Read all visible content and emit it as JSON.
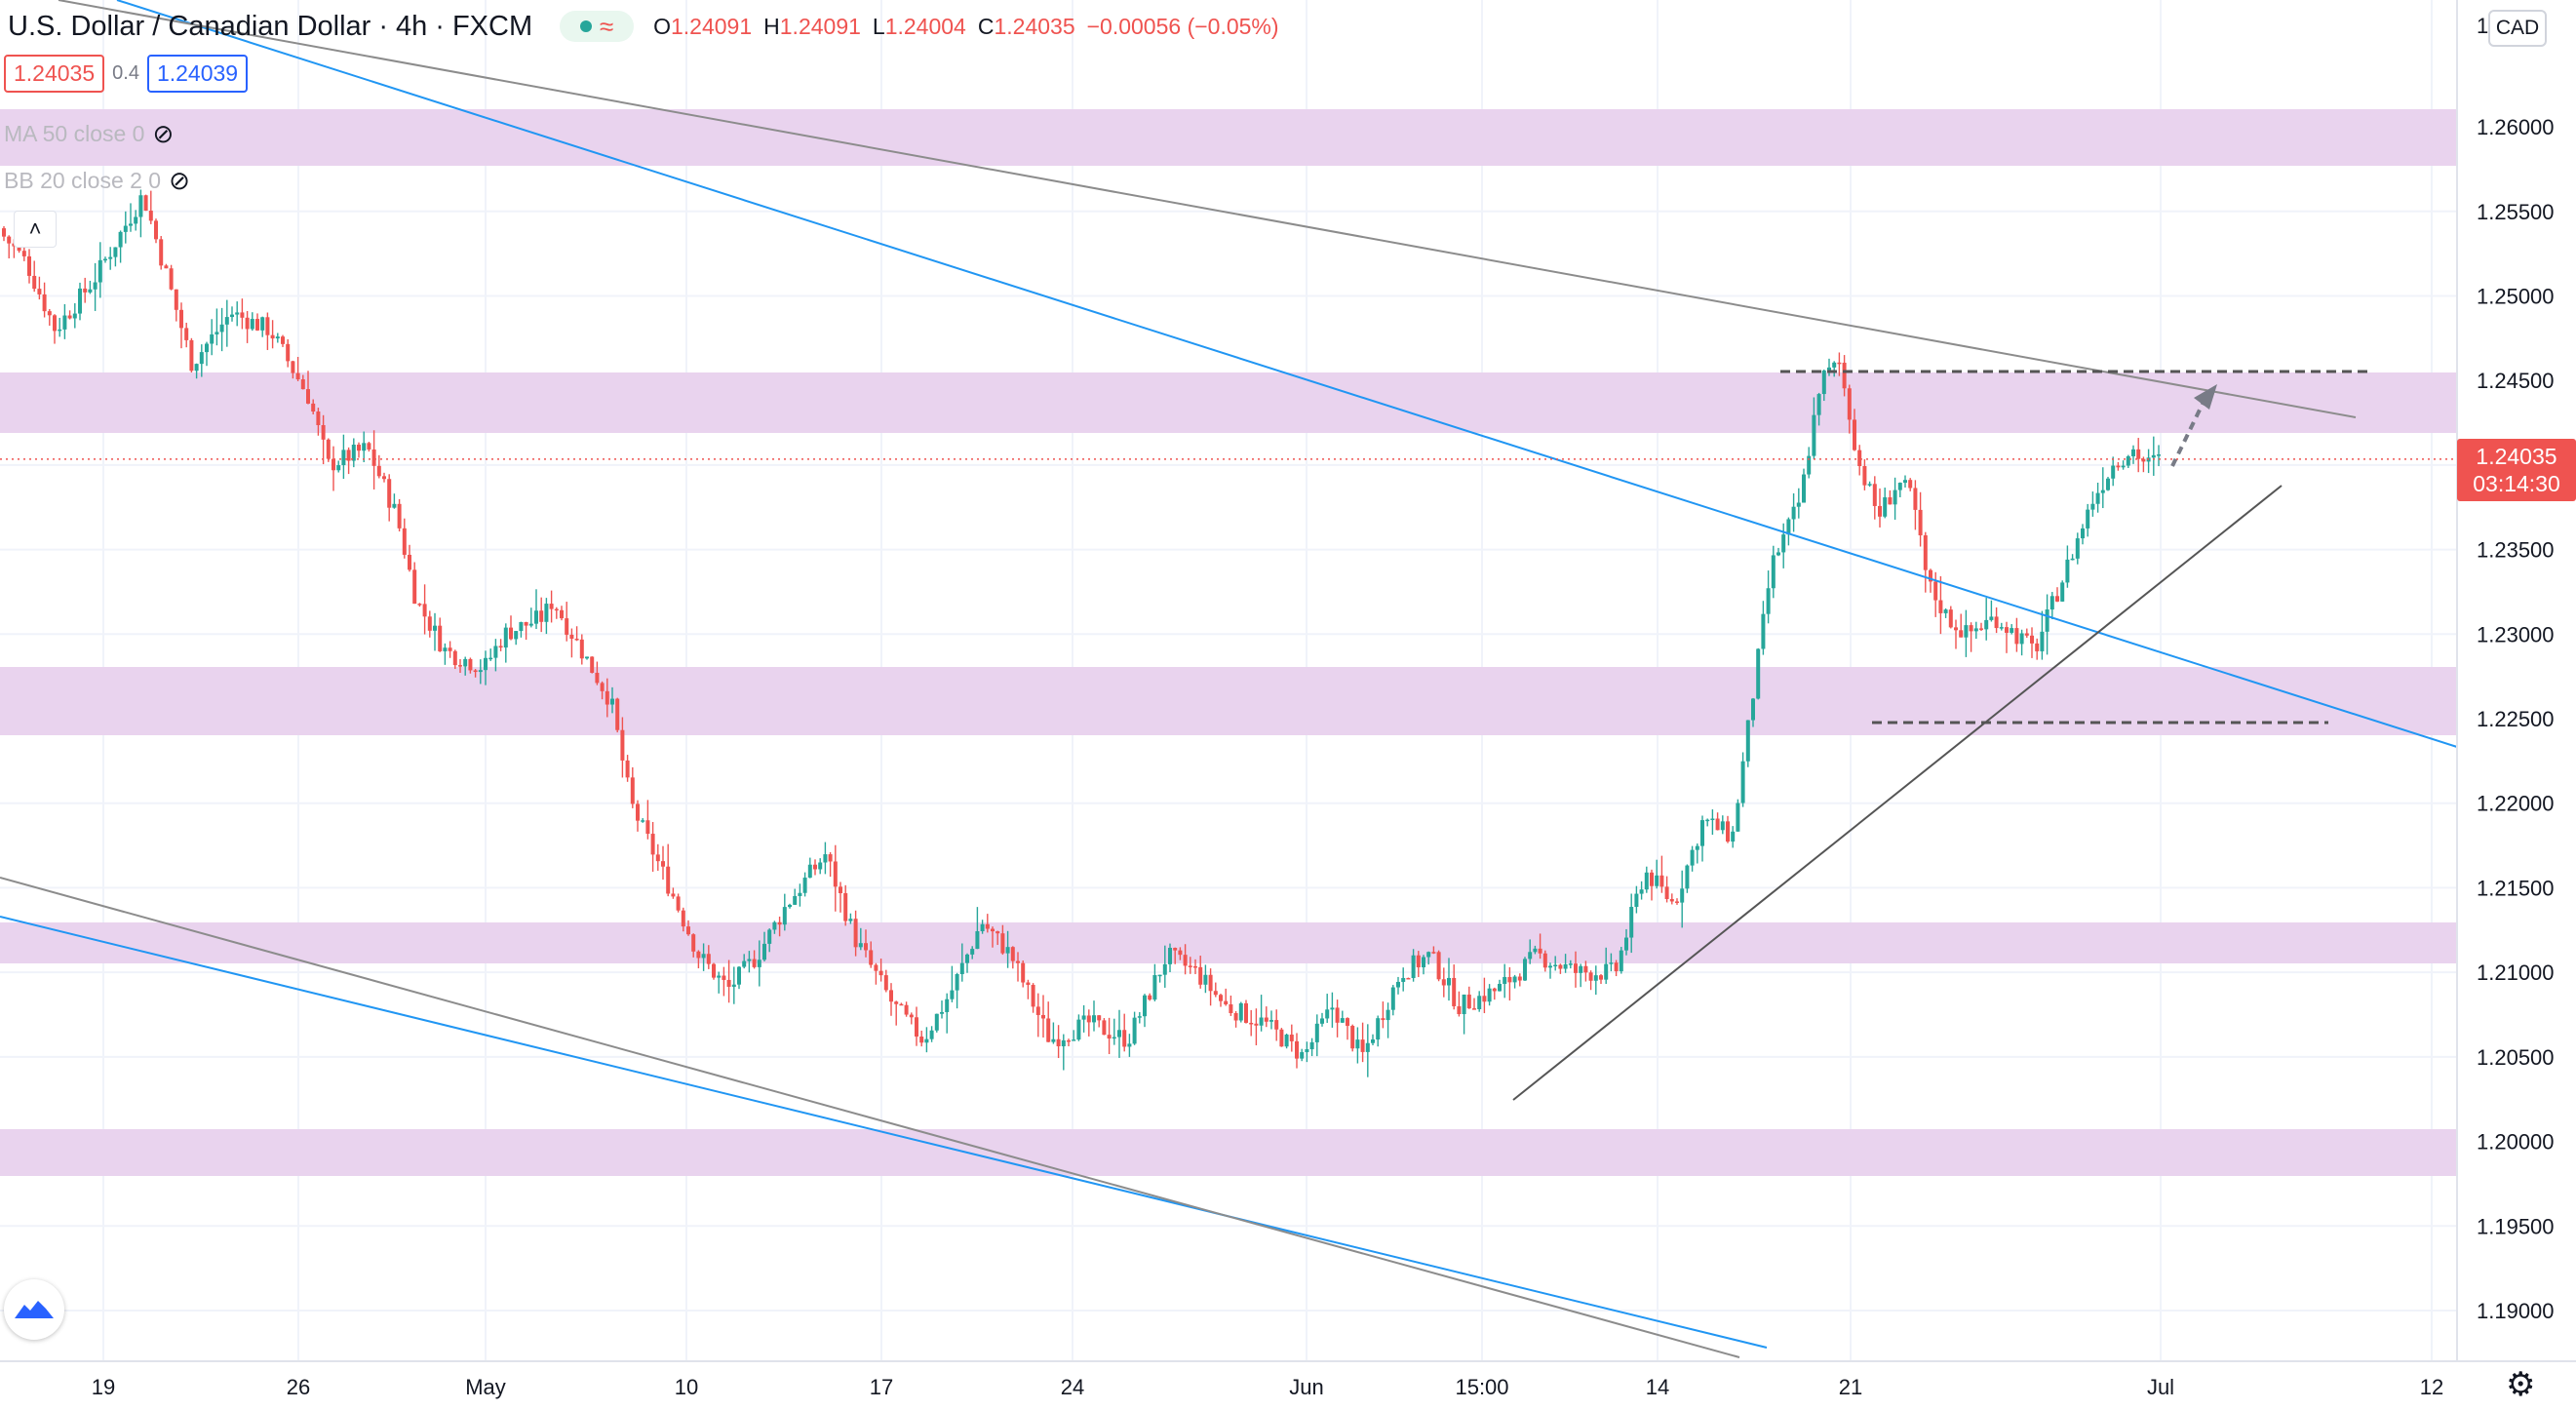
{
  "legend": {
    "symbol": "U.S. Dollar / Canadian Dollar",
    "separator": "·",
    "interval": "4h",
    "exchange": "FXCM",
    "ohlc": [
      {
        "k": "O",
        "v": "1.24091"
      },
      {
        "k": "H",
        "v": "1.24091"
      },
      {
        "k": "L",
        "v": "1.24004"
      },
      {
        "k": "C",
        "v": "1.24035"
      },
      {
        "k": "",
        "v": "−0.00056 (−0.05%)"
      }
    ]
  },
  "trade": {
    "sell_price": "1.24035",
    "spread": "0.4",
    "buy_price": "1.24039"
  },
  "indicators": [
    {
      "label": "MA 50 close 0"
    },
    {
      "label": "BB 20 close 2 0"
    }
  ],
  "currency": "CAD",
  "last_price": {
    "price": "1.24035",
    "countdown": "03:14:30"
  },
  "colors": {
    "up": "#26a69a",
    "down": "#ef5350",
    "zone": "#e9d3ee",
    "blue_line": "#2196f3",
    "grey_line": "#8c8c8c",
    "arrow": "#787b86"
  },
  "chart_data": {
    "type": "candlestick",
    "title": "U.S. Dollar / Canadian Dollar",
    "interval": "4h",
    "x_ticks": [
      "19",
      "26",
      "May",
      "10",
      "17",
      "24",
      "Jun",
      "15:00",
      "14",
      "21",
      "Jul",
      "12"
    ],
    "y_ticks": [
      "1.26000",
      "1.25500",
      "1.25000",
      "1.24500",
      "1.24000",
      "1.23500",
      "1.23000",
      "1.22500",
      "1.22000",
      "1.21500",
      "1.21000",
      "1.20500",
      "1.20000",
      "1.19500",
      "1.19000"
    ],
    "y_range": [
      1.187,
      1.2675
    ],
    "price_path": [
      [
        0,
        1.254
      ],
      [
        30,
        1.252
      ],
      [
        60,
        1.248
      ],
      [
        100,
        1.251
      ],
      [
        150,
        1.256
      ],
      [
        200,
        1.246
      ],
      [
        240,
        1.249
      ],
      [
        280,
        1.248
      ],
      [
        320,
        1.244
      ],
      [
        340,
        1.24
      ],
      [
        380,
        1.241
      ],
      [
        410,
        1.237
      ],
      [
        430,
        1.232
      ],
      [
        460,
        1.229
      ],
      [
        500,
        1.228
      ],
      [
        520,
        1.23
      ],
      [
        560,
        1.231
      ],
      [
        570,
        1.232
      ],
      [
        600,
        1.229
      ],
      [
        630,
        1.226
      ],
      [
        650,
        1.22
      ],
      [
        690,
        1.215
      ],
      [
        720,
        1.211
      ],
      [
        750,
        1.209
      ],
      [
        780,
        1.211
      ],
      [
        810,
        1.214
      ],
      [
        850,
        1.217
      ],
      [
        880,
        1.212
      ],
      [
        920,
        1.208
      ],
      [
        950,
        1.206
      ],
      [
        980,
        1.209
      ],
      [
        1010,
        1.213
      ],
      [
        1040,
        1.211
      ],
      [
        1080,
        1.206
      ],
      [
        1120,
        1.207
      ],
      [
        1160,
        1.206
      ],
      [
        1200,
        1.211
      ],
      [
        1230,
        1.21
      ],
      [
        1260,
        1.208
      ],
      [
        1300,
        1.207
      ],
      [
        1340,
        1.205
      ],
      [
        1370,
        1.208
      ],
      [
        1400,
        1.205
      ],
      [
        1440,
        1.21
      ],
      [
        1470,
        1.211
      ],
      [
        1500,
        1.208
      ],
      [
        1540,
        1.209
      ],
      [
        1580,
        1.211
      ],
      [
        1620,
        1.21
      ],
      [
        1660,
        1.21
      ],
      [
        1690,
        1.216
      ],
      [
        1720,
        1.214
      ],
      [
        1750,
        1.219
      ],
      [
        1780,
        1.218
      ],
      [
        1800,
        1.226
      ],
      [
        1820,
        1.234
      ],
      [
        1850,
        1.238
      ],
      [
        1870,
        1.245
      ],
      [
        1890,
        1.246
      ],
      [
        1910,
        1.24
      ],
      [
        1930,
        1.237
      ],
      [
        1950,
        1.239
      ],
      [
        1965,
        1.238
      ],
      [
        1980,
        1.233
      ],
      [
        2000,
        1.231
      ],
      [
        2020,
        1.23
      ],
      [
        2050,
        1.231
      ],
      [
        2070,
        1.23
      ],
      [
        2090,
        1.229
      ],
      [
        2110,
        1.232
      ],
      [
        2130,
        1.235
      ],
      [
        2150,
        1.238
      ],
      [
        2170,
        1.24
      ],
      [
        2190,
        1.241
      ],
      [
        2205,
        1.24
      ],
      [
        2215,
        1.2403
      ]
    ]
  }
}
